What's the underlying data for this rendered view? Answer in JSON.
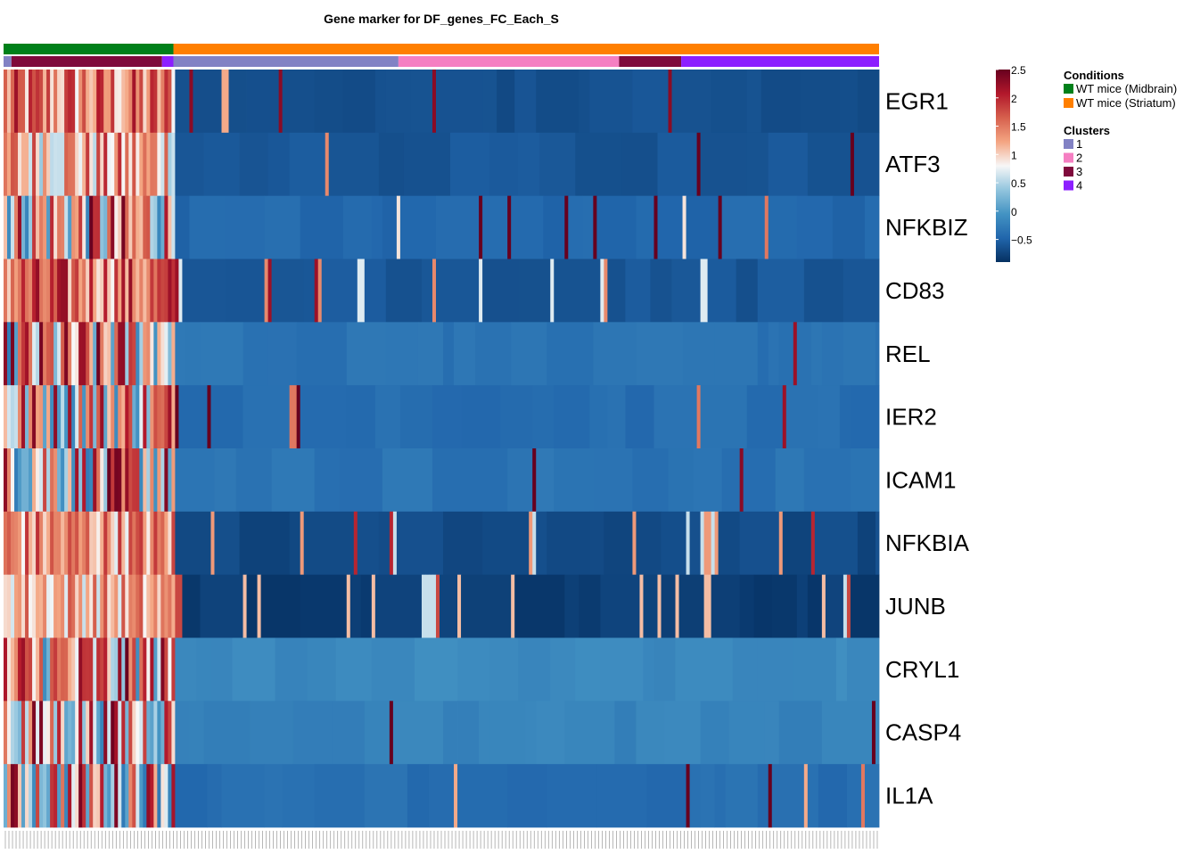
{
  "chart_data": {
    "type": "heatmap",
    "title": "Gene marker for  DF_genes_FC_Each_S",
    "genes": [
      "EGR1",
      "ATF3",
      "NFKBIZ",
      "CD83",
      "REL",
      "IER2",
      "ICAM1",
      "NFKBIA",
      "JUNB",
      "CRYL1",
      "CASP4",
      "IL1A"
    ],
    "color_scale": {
      "min": -0.9,
      "max": 2.5,
      "ticks": [
        "2.5",
        "2",
        "1.5",
        "1",
        "0.5",
        "0",
        "−0.5"
      ],
      "tick_values": [
        2.5,
        2,
        1.5,
        1,
        0.5,
        0,
        -0.5
      ],
      "colors": [
        "#053061",
        "#2166ac",
        "#4393c3",
        "#92c5de",
        "#f7f7f7",
        "#f4a582",
        "#d6604d",
        "#b2182b",
        "#67001f"
      ]
    },
    "legend": {
      "conditions_title": "Conditions",
      "conditions": [
        {
          "label": "WT mice (Midbrain)",
          "color": "#00801a"
        },
        {
          "label": "WT mice (Striatum)",
          "color": "#ff7f00"
        }
      ],
      "clusters_title": "Clusters",
      "clusters": [
        {
          "label": "1",
          "color": "#8282c4"
        },
        {
          "label": "2",
          "color": "#f57fc2"
        },
        {
          "label": "3",
          "color": "#7f0a3c"
        },
        {
          "label": "4",
          "color": "#8c1fff"
        }
      ]
    },
    "condition_bar": [
      {
        "condition": "WT mice (Midbrain)",
        "fraction": 0.194
      },
      {
        "condition": "WT mice (Striatum)",
        "fraction": 0.806
      }
    ],
    "cluster_bar": [
      {
        "cluster": "1",
        "fraction": 0.009
      },
      {
        "cluster": "3",
        "fraction": 0.172
      },
      {
        "cluster": "4",
        "fraction": 0.013
      },
      {
        "cluster": "1",
        "fraction": 0.257
      },
      {
        "cluster": "2",
        "fraction": 0.252
      },
      {
        "cluster": "3",
        "fraction": 0.071
      },
      {
        "cluster": "4",
        "fraction": 0.226
      }
    ],
    "n_cells": 245,
    "rows": {
      "EGR1": {
        "base": -0.65,
        "block": {
          "lo": 0.6,
          "hi": 2.2
        },
        "hot_density": 0.08,
        "hot_values": [
          1.2,
          2.3,
          0.3
        ]
      },
      "ATF3": {
        "base": -0.6,
        "block": {
          "lo": 0.4,
          "hi": 2.0
        },
        "hot_density": 0.07,
        "hot_values": [
          2.5,
          1.4,
          0.8
        ]
      },
      "NFKBIZ": {
        "base": -0.45,
        "block": {
          "lo": -0.3,
          "hi": 2.5
        },
        "hot_density": 0.06,
        "hot_values": [
          2.5,
          1.5,
          0.9
        ]
      },
      "CD83": {
        "base": -0.6,
        "block": {
          "lo": 0.8,
          "hi": 2.3
        },
        "hot_density": 0.08,
        "hot_values": [
          1.4,
          2.2,
          0.7
        ]
      },
      "REL": {
        "base": -0.35,
        "block": {
          "lo": -0.3,
          "hi": 2.5
        },
        "hot_density": 0.03,
        "hot_values": [
          2.5,
          2.2,
          1.3
        ]
      },
      "IER2": {
        "base": -0.4,
        "block": {
          "lo": -0.2,
          "hi": 2.5
        },
        "hot_density": 0.04,
        "hot_values": [
          2.5,
          2.2,
          1.5
        ]
      },
      "ICAM1": {
        "base": -0.35,
        "block": {
          "lo": -0.3,
          "hi": 2.5
        },
        "hot_density": 0.025,
        "hot_values": [
          2.5,
          2.3,
          1.2
        ]
      },
      "NFKBIA": {
        "base": -0.7,
        "block": {
          "lo": 0.7,
          "hi": 2.0
        },
        "hot_density": 0.1,
        "hot_values": [
          1.3,
          2.0,
          0.6
        ]
      },
      "JUNB": {
        "base": -0.8,
        "block": {
          "lo": 0.6,
          "hi": 1.8
        },
        "hot_density": 0.13,
        "hot_values": [
          1.1,
          0.6,
          1.8
        ]
      },
      "CRYL1": {
        "base": -0.15,
        "block": {
          "lo": -0.15,
          "hi": 2.5
        },
        "hot_density": 0.0,
        "hot_values": [
          2.5
        ]
      },
      "CASP4": {
        "base": -0.2,
        "block": {
          "lo": -0.2,
          "hi": 2.5
        },
        "hot_density": 0.01,
        "hot_values": [
          2.5
        ]
      },
      "IL1A": {
        "base": -0.4,
        "block": {
          "lo": -0.3,
          "hi": 2.5
        },
        "hot_density": 0.05,
        "hot_values": [
          2.5,
          1.5,
          1.2
        ]
      }
    }
  }
}
